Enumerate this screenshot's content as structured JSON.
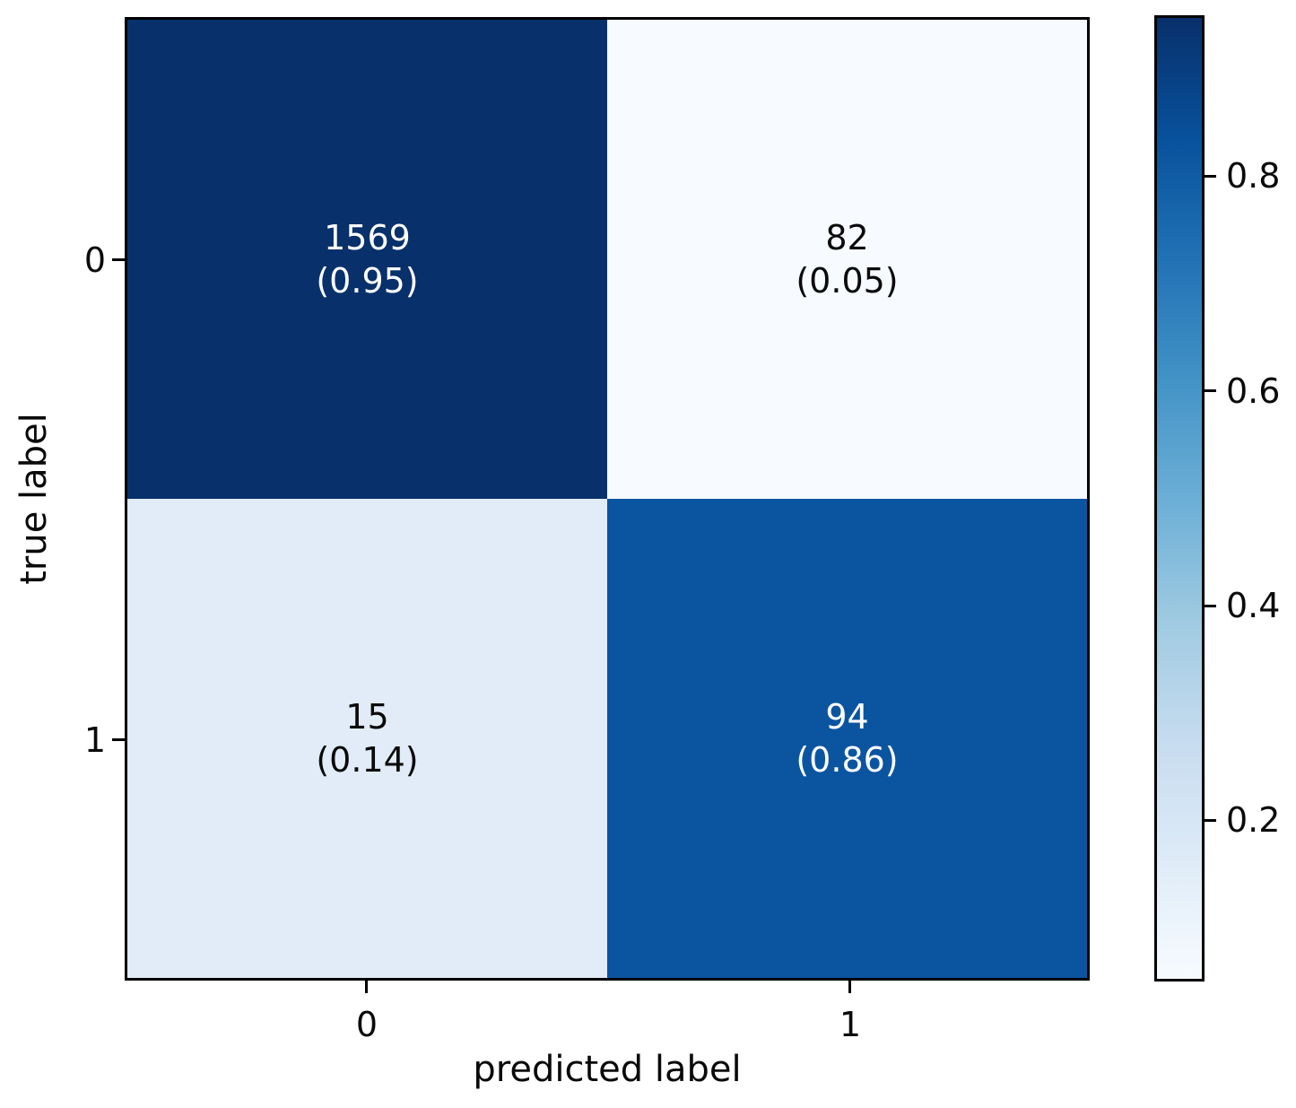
{
  "chart_data": {
    "type": "heatmap",
    "subtype": "confusion_matrix",
    "xlabel": "predicted label",
    "ylabel": "true label",
    "x_tick_labels": [
      "0",
      "1"
    ],
    "y_tick_labels": [
      "0",
      "1"
    ],
    "rows": [
      "0",
      "1"
    ],
    "columns": [
      "0",
      "1"
    ],
    "cells": [
      {
        "true_label": "0",
        "predicted_label": "0",
        "count": 1569,
        "fraction": "(0.95)",
        "value": 0.95,
        "bg": "#08306b",
        "text_color": "#ffffff"
      },
      {
        "true_label": "0",
        "predicted_label": "1",
        "count": 82,
        "fraction": "(0.05)",
        "value": 0.05,
        "bg": "#f7fbff",
        "text_color": "#0a0a0a"
      },
      {
        "true_label": "1",
        "predicted_label": "0",
        "count": 15,
        "fraction": "(0.14)",
        "value": 0.14,
        "bg": "#e1ecf8",
        "text_color": "#0a0a0a"
      },
      {
        "true_label": "1",
        "predicted_label": "1",
        "count": 94,
        "fraction": "(0.86)",
        "value": 0.86,
        "bg": "#0b55a0",
        "text_color": "#ffffff"
      }
    ],
    "colorbar": {
      "colormap": "Blues",
      "range": [
        0.05,
        0.95
      ],
      "tick_values": [
        0.8,
        0.6,
        0.4,
        0.2
      ],
      "ticks": [
        "0.8",
        "0.6",
        "0.4",
        "0.2"
      ],
      "gradient_stops": [
        "#f7fbff",
        "#deebf7",
        "#c6dbef",
        "#9ecae1",
        "#6baed6",
        "#4292c6",
        "#2171b5",
        "#08519c",
        "#08306b"
      ]
    },
    "layout": {
      "grid": false,
      "legend": false,
      "colorbar_position": "right"
    }
  }
}
